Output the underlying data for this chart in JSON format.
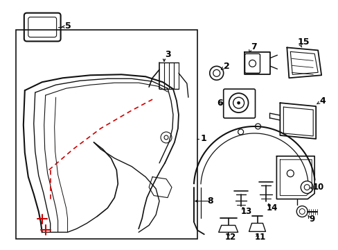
{
  "bg": "#ffffff",
  "lc": "#111111",
  "rc": "#cc0000",
  "figsize": [
    4.89,
    3.6
  ],
  "dpi": 100
}
